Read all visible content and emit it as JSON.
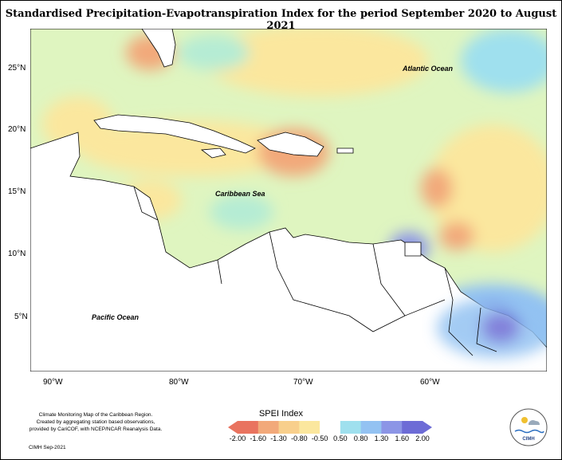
{
  "title": "Standardised Precipitation-Evapotranspiration Index for the period September 2020 to August 2021",
  "oceans": {
    "atlantic": "Atlantic Ocean",
    "caribbean": "Caribbean Sea",
    "pacific": "Pacific Ocean"
  },
  "lat_labels": [
    "25°N",
    "20°N",
    "15°N",
    "10°N",
    "5°N"
  ],
  "lon_labels": [
    "90°W",
    "80°W",
    "70°W",
    "60°W"
  ],
  "legend": {
    "title": "SPEI Index",
    "ticks": [
      "-2.00",
      "-1.60",
      "-1.30",
      "-0.80",
      "-0.50",
      "0.50",
      "0.80",
      "1.30",
      "1.60",
      "2.00"
    ],
    "colors": [
      "#e9735f",
      "#f2a97a",
      "#f8cf8c",
      "#fbe79e",
      "#d6f2b2",
      "#b5ecd4",
      "#9fe0ee",
      "#93c2f2",
      "#8c95e6",
      "#6d6cd6"
    ]
  },
  "footnote": {
    "line1": "Climate Monitoring Map of the Caribbean Region.",
    "line2": "Created by aggregating station based observations,",
    "line3": "provided by CariCOF, with NCEP/NCAR Reanalysis Data.",
    "credit": "CIMH Sep-2021"
  },
  "logo_text": "CIMH",
  "colors": {
    "base_field": "#dff5c0",
    "dry": "#f8cf8c",
    "very_dry": "#f2a97a",
    "wet": "#9fe0ee",
    "very_wet": "#8c95e6"
  }
}
